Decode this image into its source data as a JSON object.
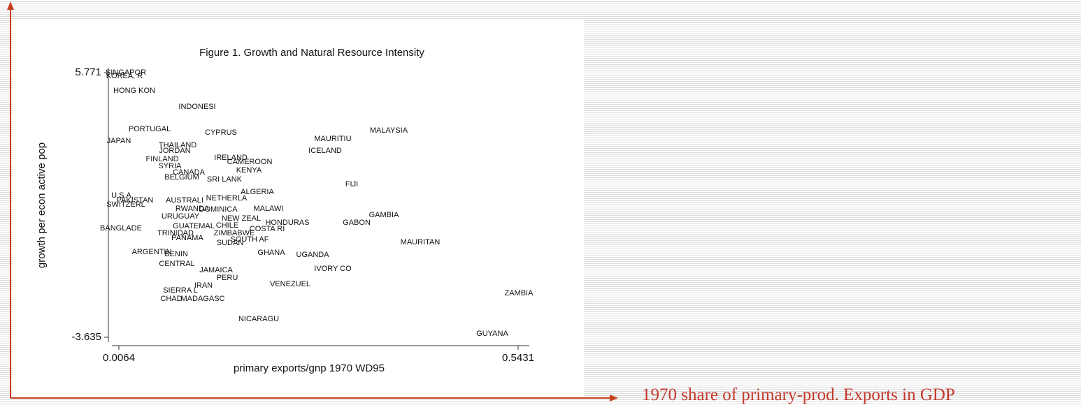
{
  "caption": "1970 share of primary-prod. Exports in GDP",
  "chart_data": {
    "type": "scatter",
    "title": "Figure 1. Growth and Natural Resource Intensity",
    "x_label": "primary exports/gnp 1970 WD95",
    "y_label": "growth per econ active pop",
    "xlim": [
      0.0064,
      0.5431
    ],
    "ylim": [
      -3.635,
      5.771
    ],
    "xticks": [
      0.0064,
      0.5431
    ],
    "yticks": [
      -3.635,
      5.771
    ],
    "labels": [
      "SINGAPOR",
      "KOREA, R",
      "HONG KON",
      "INDONESI",
      "PORTUGAL",
      "CYPRUS",
      "MALAYSIA",
      "MAURITIU",
      "JAPAN",
      "THAILAND",
      "ICELAND",
      "JORDAN",
      "IRELAND",
      "CAMEROON",
      "FINLAND",
      "KENYA",
      "SYRIA",
      "CANADA",
      "BELGIUM",
      "SRI LANK",
      "FIJI",
      "ALGERIA",
      "U.S.A.",
      "PAKISTAN",
      "AUSTRALI",
      "SWITZERL",
      "NETHERLA",
      "RWANDA",
      "MALAWI",
      "DOMINICA",
      "GAMBIA",
      "URUGUAY",
      "GABON",
      "HONDURAS",
      "NEW ZEAL",
      "BANGLADE",
      "GUATEMAL",
      "CHILE",
      "COSTA RI",
      "TRINIDAD",
      "ZIMBABWE",
      "PANAMA",
      "SOUTH AF",
      "SUDAN",
      "MAURITAN",
      "ARGENTIN",
      "GHANA",
      "UGANDA",
      "BENIN",
      "CENTRAL",
      "JAMAICA",
      "IVORY CO",
      "PERU",
      "IRAN",
      "VENEZUEL",
      "SIERRA L",
      "ZAMBIA",
      "CHAD",
      "MADAGASC",
      "NICARAGU",
      "GUYANA"
    ],
    "x": [
      0.0158,
      0.0139,
      0.0271,
      0.1117,
      0.0478,
      0.1436,
      0.3692,
      0.294,
      0.0064,
      0.0854,
      0.2837,
      0.0816,
      0.1568,
      0.1822,
      0.0647,
      0.1812,
      0.075,
      0.1004,
      0.091,
      0.1483,
      0.3194,
      0.1925,
      0.0111,
      0.028,
      0.0948,
      0.0158,
      0.1511,
      0.1051,
      0.2075,
      0.1399,
      0.3626,
      0.0891,
      0.326,
      0.2329,
      0.1709,
      0.0092,
      0.107,
      0.1521,
      0.2057,
      0.0825,
      0.1615,
      0.0985,
      0.1822,
      0.1559,
      0.4115,
      0.0506,
      0.2113,
      0.2668,
      0.0835,
      0.0844,
      0.1371,
      0.294,
      0.1521,
      0.1201,
      0.2367,
      0.0891,
      0.544,
      0.0769,
      0.1192,
      0.1944,
      0.5083
    ],
    "y": [
      5.771,
      5.647,
      5.126,
      4.555,
      3.761,
      3.637,
      3.711,
      3.413,
      3.339,
      3.19,
      2.992,
      2.992,
      2.743,
      2.594,
      2.694,
      2.297,
      2.445,
      2.222,
      2.048,
      1.974,
      1.8,
      1.527,
      1.403,
      1.229,
      1.229,
      1.08,
      1.304,
      0.932,
      0.932,
      0.907,
      0.708,
      0.659,
      0.435,
      0.435,
      0.584,
      0.237,
      0.311,
      0.336,
      0.212,
      0.063,
      0.063,
      -0.111,
      -0.16,
      -0.284,
      -0.259,
      -0.607,
      -0.632,
      -0.706,
      -0.681,
      -1.029,
      -1.252,
      -1.203,
      -1.526,
      -1.798,
      -1.749,
      -1.972,
      -2.071,
      -2.27,
      -2.27,
      -2.99,
      -3.511
    ],
    "color": "#111111"
  }
}
